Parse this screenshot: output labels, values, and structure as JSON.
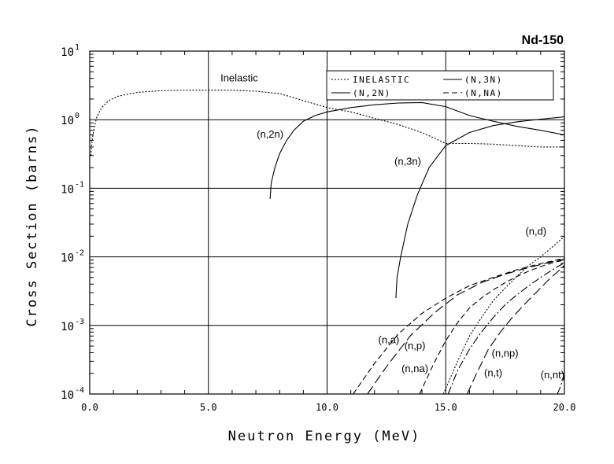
{
  "chart_data": {
    "type": "line",
    "title": "Nd-150",
    "xlabel": "Neutron Energy (MeV)",
    "ylabel": "Cross Section (barns)",
    "xlim": [
      0,
      20
    ],
    "ylim": [
      0.0001,
      10
    ],
    "yscale": "log",
    "grid": true,
    "legend_placement": "top-right",
    "x_ticks": [
      {
        "value": 0,
        "label": "0.0"
      },
      {
        "value": 5,
        "label": "5.0"
      },
      {
        "value": 10,
        "label": "10.0"
      },
      {
        "value": 15,
        "label": "15.0"
      },
      {
        "value": 20,
        "label": "20.0"
      }
    ],
    "y_ticks": [
      {
        "value": 10,
        "base": "10",
        "exp": "1"
      },
      {
        "value": 1,
        "base": "10",
        "exp": "0"
      },
      {
        "value": 0.1,
        "base": "10",
        "exp": "-1"
      },
      {
        "value": 0.01,
        "base": "10",
        "exp": "-2"
      },
      {
        "value": 0.001,
        "base": "10",
        "exp": "-3"
      },
      {
        "value": 0.0001,
        "base": "10",
        "exp": "-4"
      }
    ],
    "legend": [
      {
        "label": "INELASTIC",
        "style": "dotted"
      },
      {
        "label": "(N,3N)",
        "style": "solid"
      },
      {
        "label": "(N,2N)",
        "style": "solid"
      },
      {
        "label": "(N,NA)",
        "style": "dashed"
      }
    ],
    "series": [
      {
        "name": "inelastic",
        "style": "dotted",
        "x": [
          0.05,
          0.1,
          0.2,
          0.3,
          0.5,
          0.8,
          1.2,
          2,
          3,
          4,
          5,
          6,
          7,
          8,
          9,
          10,
          11,
          12,
          13,
          14,
          15,
          16,
          17,
          18,
          19,
          20
        ],
        "y": [
          0.3,
          0.5,
          0.8,
          1.1,
          1.5,
          1.9,
          2.2,
          2.5,
          2.65,
          2.7,
          2.7,
          2.7,
          2.6,
          2.4,
          1.9,
          1.5,
          1.3,
          1.05,
          0.85,
          0.65,
          0.45,
          0.45,
          0.44,
          0.42,
          0.4,
          0.4
        ]
      },
      {
        "name": "(n,2n)",
        "style": "solid",
        "x": [
          7.6,
          7.65,
          7.8,
          8.0,
          8.3,
          8.6,
          9.0,
          9.5,
          10,
          11,
          12,
          13,
          14,
          15,
          16,
          17,
          18,
          19,
          20
        ],
        "y": [
          0.07,
          0.12,
          0.2,
          0.32,
          0.5,
          0.7,
          0.95,
          1.15,
          1.3,
          1.5,
          1.65,
          1.75,
          1.78,
          1.55,
          1.15,
          0.95,
          0.8,
          0.7,
          0.6
        ]
      },
      {
        "name": "(n,3n)",
        "style": "solid",
        "x": [
          12.9,
          12.95,
          13.1,
          13.4,
          13.8,
          14.3,
          15.0,
          16,
          17,
          18,
          19,
          20
        ],
        "y": [
          0.0025,
          0.005,
          0.01,
          0.03,
          0.08,
          0.2,
          0.42,
          0.65,
          0.82,
          0.93,
          1.02,
          1.1
        ]
      },
      {
        "name": "(n,a)",
        "style": "dashed",
        "x": [
          11.1,
          12,
          13,
          14,
          15,
          16,
          17,
          18,
          19,
          20
        ],
        "y": [
          0.0001,
          0.00028,
          0.00075,
          0.0015,
          0.0025,
          0.0038,
          0.005,
          0.0065,
          0.008,
          0.0095
        ]
      },
      {
        "name": "(n,p)",
        "style": "long-dash",
        "x": [
          11.7,
          12.5,
          13.5,
          14.5,
          15.5,
          16.5,
          17.5,
          18.5,
          19.5,
          20
        ],
        "y": [
          0.0001,
          0.00025,
          0.0007,
          0.0015,
          0.0028,
          0.0042,
          0.0056,
          0.007,
          0.0085,
          0.0092
        ]
      },
      {
        "name": "(n,d)",
        "style": "dotted",
        "x": [
          14.9,
          15.5,
          16,
          16.5,
          17,
          17.5,
          18,
          18.5,
          19,
          19.5,
          20
        ],
        "y": [
          0.0001,
          0.0003,
          0.0007,
          0.0013,
          0.0023,
          0.0035,
          0.0052,
          0.0075,
          0.01,
          0.014,
          0.02
        ]
      },
      {
        "name": "(n,na)",
        "style": "dashed",
        "x": [
          13.9,
          14.5,
          15,
          15.5,
          16,
          16.5,
          17,
          17.5,
          18,
          18.5,
          19,
          19.5,
          20
        ],
        "y": [
          0.0001,
          0.00028,
          0.0006,
          0.0011,
          0.0018,
          0.0025,
          0.0033,
          0.0042,
          0.0052,
          0.0062,
          0.0072,
          0.0082,
          0.009
        ]
      },
      {
        "name": "(n,np)",
        "style": "dash-dot",
        "x": [
          15.1,
          15.5,
          16,
          16.5,
          17,
          17.5,
          18,
          18.5,
          19,
          19.5,
          20
        ],
        "y": [
          0.0001,
          0.00022,
          0.00045,
          0.0008,
          0.0013,
          0.002,
          0.0028,
          0.0038,
          0.005,
          0.0065,
          0.0082
        ]
      },
      {
        "name": "(n,t)",
        "style": "long-dash",
        "x": [
          15.9,
          16.3,
          16.8,
          17.3,
          17.8,
          18.3,
          18.8,
          19.3,
          19.7,
          20
        ],
        "y": [
          0.0001,
          0.0002,
          0.00045,
          0.0008,
          0.0013,
          0.002,
          0.003,
          0.0045,
          0.006,
          0.0075
        ]
      },
      {
        "name": "(n,nt)",
        "style": "dash-dot",
        "x": [
          19.7,
          19.8,
          19.9,
          20
        ],
        "y": [
          0.0001,
          0.00012,
          0.00015,
          0.00018
        ]
      }
    ],
    "annotations": [
      {
        "text": "Inelastic",
        "x": 6.3,
        "y": 3.6
      },
      {
        "text": "(n,2n)",
        "x": 7.6,
        "y": 0.55
      },
      {
        "text": "(n,3n)",
        "x": 13.4,
        "y": 0.22
      },
      {
        "text": "(n,d)",
        "x": 18.8,
        "y": 0.021
      },
      {
        "text": "(n,a)",
        "x": 12.6,
        "y": 0.00055
      },
      {
        "text": "(n,p)",
        "x": 13.7,
        "y": 0.00045
      },
      {
        "text": "(n,na)",
        "x": 13.7,
        "y": 0.00021
      },
      {
        "text": "(n,np)",
        "x": 17.5,
        "y": 0.00035
      },
      {
        "text": "(n,t)",
        "x": 17.0,
        "y": 0.00018
      },
      {
        "text": "(n,nt)",
        "x": 19.5,
        "y": 0.00017
      }
    ]
  }
}
